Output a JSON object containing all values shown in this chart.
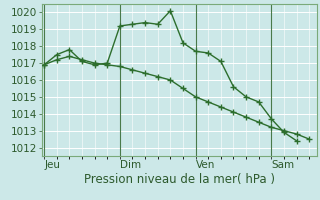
{
  "xlabel": "Pression niveau de la mer( hPa )",
  "bg_color": "#cce8e8",
  "grid_color": "#ffffff",
  "line_color": "#2d6e2d",
  "ylim": [
    1011.5,
    1020.5
  ],
  "yticks": [
    1012,
    1013,
    1014,
    1015,
    1016,
    1017,
    1018,
    1019,
    1020
  ],
  "day_labels": [
    "Jeu",
    "Dim",
    "Ven",
    "Sam"
  ],
  "day_positions": [
    0.0,
    3.0,
    6.0,
    9.0
  ],
  "xlim": [
    -0.1,
    10.8
  ],
  "series1_x": [
    0.0,
    0.5,
    1.0,
    1.5,
    2.0,
    2.5,
    3.0,
    3.5,
    4.0,
    4.5,
    5.0,
    5.5,
    6.0,
    6.5,
    7.0,
    7.5,
    8.0,
    8.5,
    9.0,
    9.5,
    10.0
  ],
  "series1_y": [
    1016.9,
    1017.5,
    1017.8,
    1017.1,
    1016.9,
    1017.0,
    1019.2,
    1019.3,
    1019.4,
    1019.3,
    1020.1,
    1018.2,
    1017.7,
    1017.6,
    1017.1,
    1015.6,
    1015.0,
    1014.7,
    1013.7,
    1012.9,
    1012.4
  ],
  "series2_x": [
    0.0,
    0.5,
    1.0,
    1.5,
    2.0,
    2.5,
    3.0,
    3.5,
    4.0,
    4.5,
    5.0,
    5.5,
    6.0,
    6.5,
    7.0,
    7.5,
    8.0,
    8.5,
    9.0,
    9.5,
    10.0,
    10.5
  ],
  "series2_y": [
    1016.9,
    1017.2,
    1017.4,
    1017.2,
    1017.0,
    1016.9,
    1016.8,
    1016.6,
    1016.4,
    1016.2,
    1016.0,
    1015.5,
    1015.0,
    1014.7,
    1014.4,
    1014.1,
    1013.8,
    1013.5,
    1013.2,
    1013.0,
    1012.8,
    1012.5
  ],
  "font_color": "#2d5a2d",
  "font_size": 7.5,
  "label_font_size": 8.5,
  "vline_color": "#4a7a4a",
  "spine_color": "#7aaa7a"
}
